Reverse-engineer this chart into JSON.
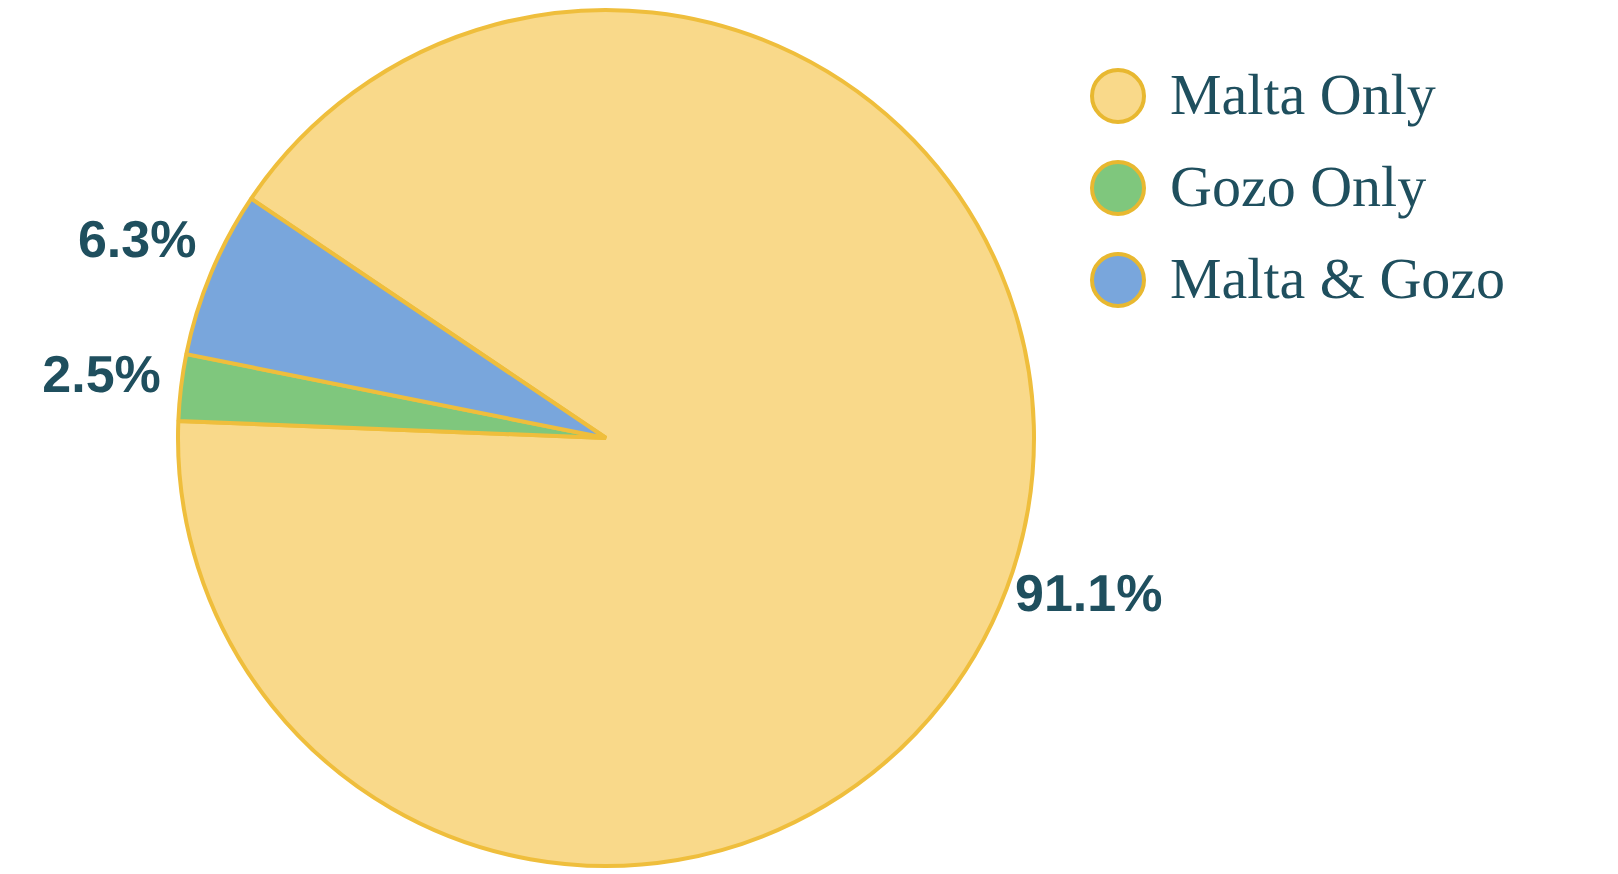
{
  "chart_data": {
    "type": "pie",
    "categories": [
      "Malta Only",
      "Gozo Only",
      "Malta & Gozo"
    ],
    "values": [
      91.1,
      2.5,
      6.3
    ],
    "colors": [
      "#f9d98a",
      "#7fc77d",
      "#79a6dc"
    ],
    "value_labels": [
      "91.1%",
      "2.5%",
      "6.3%"
    ],
    "legend": "top right"
  }
}
